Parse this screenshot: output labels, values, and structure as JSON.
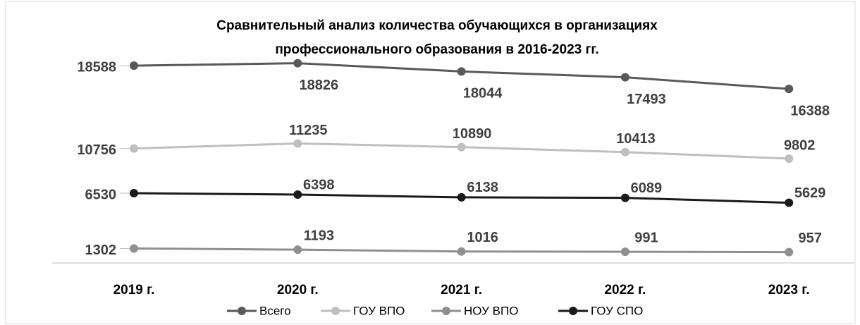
{
  "chart_data": {
    "type": "line",
    "title": [
      "Сравнительный анализ количества обучающихся в организациях",
      "профессионального образования в 2016-2023 гг."
    ],
    "categories": [
      "2019 г.",
      "2020 г.",
      "2021 г.",
      "2022 г.",
      "2023 г."
    ],
    "ylim": [
      0,
      20000
    ],
    "series": [
      {
        "name": "Всего",
        "color": "#595959",
        "values": [
          18588,
          18826,
          18044,
          17493,
          16388
        ]
      },
      {
        "name": "ГОУ ВПО",
        "color": "#bfbfbf",
        "values": [
          10756,
          11235,
          10890,
          10413,
          9802
        ]
      },
      {
        "name": "НОУ ВПО",
        "color": "#8f8f8f",
        "values": [
          1302,
          1193,
          1016,
          991,
          957
        ]
      },
      {
        "name": "ГОУ СПО",
        "color": "#1a1a1a",
        "values": [
          6530,
          6398,
          6138,
          6089,
          5629
        ]
      }
    ]
  }
}
